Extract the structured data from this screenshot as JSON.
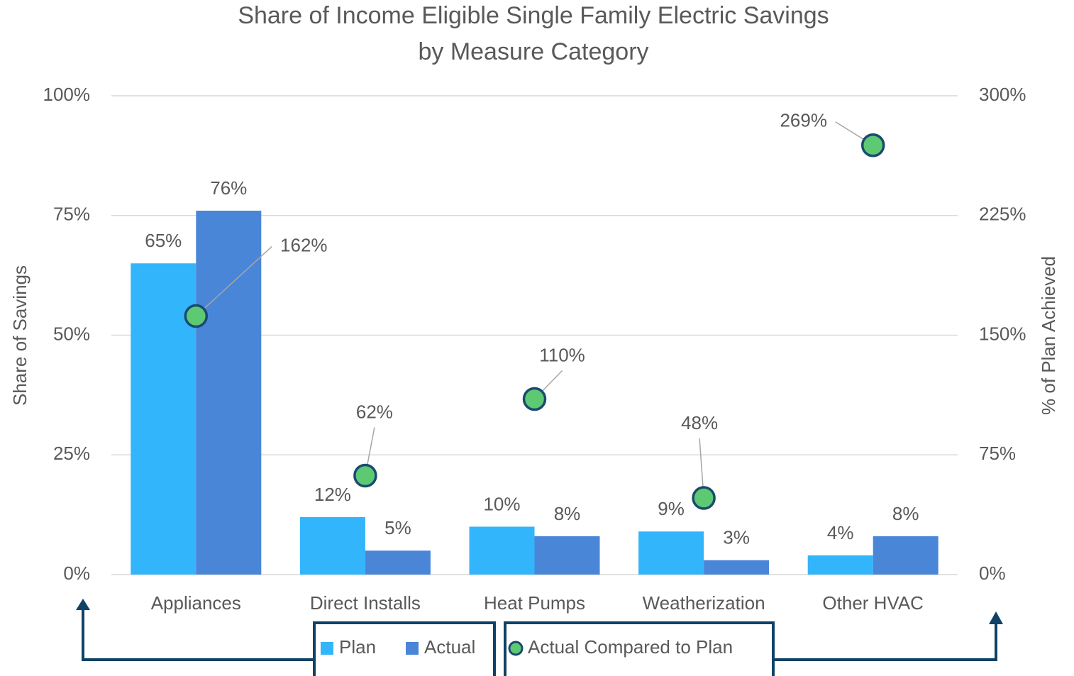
{
  "chart_data": {
    "type": "bar_scatter",
    "title": [
      "Share of Income Eligible Single Family Electric Savings",
      "by Measure Category"
    ],
    "y_label": "Share of Savings",
    "y2_label": "% of Plan Achieved",
    "categories": [
      "Appliances",
      "Direct Installs",
      "Heat Pumps",
      "Weatherization",
      "Other HVAC"
    ],
    "series": [
      {
        "name": "Plan",
        "color": "#33b5fc",
        "values": [
          65,
          12,
          10,
          9,
          4
        ],
        "value_labels": [
          "65%",
          "12%",
          "10%",
          "9%",
          "4%"
        ]
      },
      {
        "name": "Actual",
        "color": "#4a86d8",
        "values": [
          76,
          5,
          8,
          3,
          8
        ],
        "value_labels": [
          "76%",
          "5%",
          "8%",
          "3%",
          "8%"
        ]
      },
      {
        "name": "Actual Compared to Plan",
        "color": "#5dc973",
        "axis": "y2",
        "values": [
          162,
          62,
          110,
          48,
          269
        ],
        "value_labels": [
          "162%",
          "62%",
          "110%",
          "48%",
          "269%"
        ]
      }
    ],
    "ylim": [
      0,
      100
    ],
    "yticks": [
      {
        "value": 0,
        "label": "0%"
      },
      {
        "value": 25,
        "label": "25%"
      },
      {
        "value": 50,
        "label": "50%"
      },
      {
        "value": 75,
        "label": "75%"
      },
      {
        "value": 100,
        "label": "100%"
      }
    ],
    "y2lim": [
      0,
      300
    ],
    "y2ticks": [
      {
        "value": 0,
        "label": "0%"
      },
      {
        "value": 75,
        "label": "75%"
      },
      {
        "value": 150,
        "label": "150%"
      },
      {
        "value": 225,
        "label": "225%"
      },
      {
        "value": 300,
        "label": "300%"
      }
    ],
    "grid": true,
    "legend": "bottom"
  }
}
